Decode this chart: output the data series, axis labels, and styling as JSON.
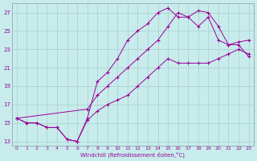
{
  "xlabel": "Windchill (Refroidissement éolien,°C)",
  "bg_color": "#c8ecec",
  "line_color": "#990099",
  "grid_color": "#aacccc",
  "spine_color": "#889aaa",
  "xlim": [
    -0.5,
    23.5
  ],
  "ylim": [
    12.5,
    28.0
  ],
  "yticks": [
    13,
    15,
    17,
    19,
    21,
    23,
    25,
    27
  ],
  "xticks": [
    0,
    1,
    2,
    3,
    4,
    5,
    6,
    7,
    8,
    9,
    10,
    11,
    12,
    13,
    14,
    15,
    16,
    17,
    18,
    19,
    20,
    21,
    22,
    23
  ],
  "line1_x": [
    0,
    1,
    2,
    3,
    4,
    5,
    6,
    7,
    8,
    9,
    10,
    11,
    12,
    13,
    14,
    15,
    16,
    17,
    18,
    19,
    20,
    21,
    22,
    23
  ],
  "line1_y": [
    15.5,
    15.0,
    15.0,
    14.5,
    14.5,
    13.2,
    13.0,
    15.3,
    16.3,
    17.0,
    17.5,
    18.0,
    19.0,
    20.0,
    21.0,
    22.0,
    21.5,
    21.5,
    21.5,
    21.5,
    22.0,
    22.5,
    23.0,
    22.5
  ],
  "line2_x": [
    0,
    1,
    2,
    3,
    4,
    5,
    6,
    7,
    8,
    9,
    10,
    11,
    12,
    13,
    14,
    15,
    16,
    17,
    18,
    19,
    20,
    21,
    22,
    23
  ],
  "line2_y": [
    15.5,
    15.0,
    15.0,
    14.5,
    14.5,
    13.2,
    13.0,
    15.5,
    19.5,
    20.5,
    22.0,
    24.0,
    25.0,
    25.8,
    27.0,
    27.5,
    26.5,
    26.5,
    25.5,
    26.5,
    24.0,
    23.5,
    23.8,
    24.0
  ],
  "line3_x": [
    0,
    7,
    8,
    9,
    10,
    11,
    12,
    13,
    14,
    15,
    16,
    17,
    18,
    19,
    20,
    21,
    22,
    23
  ],
  "line3_y": [
    15.5,
    16.5,
    18.0,
    19.0,
    20.0,
    21.0,
    22.0,
    23.0,
    24.0,
    25.5,
    27.0,
    26.5,
    27.2,
    27.0,
    25.5,
    23.5,
    23.5,
    22.2
  ]
}
